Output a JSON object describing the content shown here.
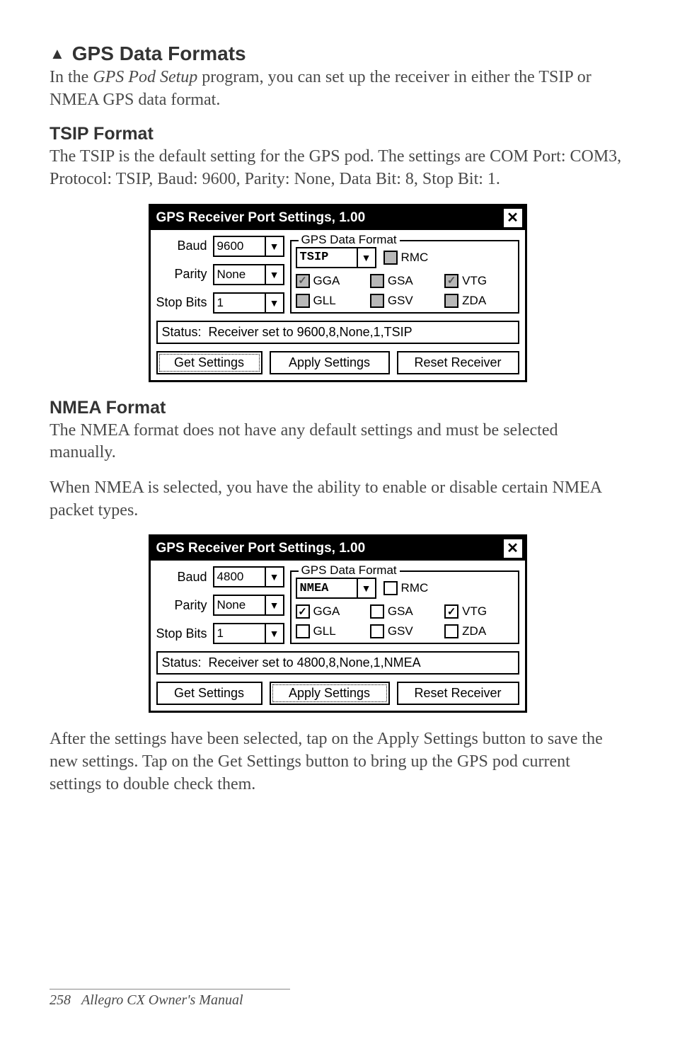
{
  "section": {
    "title": "GPS Data Formats",
    "intro_pre": "In the ",
    "intro_italic": "GPS Pod Setup",
    "intro_post": " program, you can set up the receiver in either the TSIP or NMEA GPS data format."
  },
  "tsip": {
    "heading": "TSIP Format",
    "text": "The TSIP is the default setting for the GPS pod. The settings are COM Port: COM3, Protocol: TSIP, Baud: 9600, Parity: None, Data Bit: 8, Stop Bit: 1."
  },
  "dlg1": {
    "title": "GPS Receiver Port Settings, 1.00",
    "baud_label": "Baud",
    "baud_value": "9600",
    "parity_label": "Parity",
    "parity_value": "None",
    "stopbits_label": "Stop Bits",
    "stopbits_value": "1",
    "group_label": "GPS Data Format",
    "format_value": "TSIP",
    "cb": {
      "rmc": "RMC",
      "gga": "GGA",
      "gsa": "GSA",
      "vtg": "VTG",
      "gll": "GLL",
      "gsv": "GSV",
      "zda": "ZDA"
    },
    "status_label": "Status:",
    "status_value": "Receiver set to 9600,8,None,1,TSIP",
    "btn_get": "Get Settings",
    "btn_apply": "Apply Settings",
    "btn_reset": "Reset Receiver"
  },
  "nmea": {
    "heading": "NMEA Format",
    "text1": "The NMEA format does not have any default settings and must be selected manually.",
    "text2": "When NMEA is selected, you have the ability to enable or disable certain NMEA packet types."
  },
  "dlg2": {
    "title": "GPS Receiver Port Settings, 1.00",
    "baud_label": "Baud",
    "baud_value": "4800",
    "parity_label": "Parity",
    "parity_value": "None",
    "stopbits_label": "Stop Bits",
    "stopbits_value": "1",
    "group_label": "GPS Data Format",
    "format_value": "NMEA",
    "cb": {
      "rmc": "RMC",
      "gga": "GGA",
      "gsa": "GSA",
      "vtg": "VTG",
      "gll": "GLL",
      "gsv": "GSV",
      "zda": "ZDA"
    },
    "status_label": "Status:",
    "status_value": "Receiver set to 4800,8,None,1,NMEA",
    "btn_get": "Get Settings",
    "btn_apply": "Apply Settings",
    "btn_reset": "Reset Receiver"
  },
  "after": "After the settings have been selected, tap on the Apply Settings button to save the new settings. Tap on the Get Settings button to bring up the GPS pod current settings to double check them.",
  "footer": {
    "page": "258",
    "title": "Allegro CX Owner's Manual"
  }
}
